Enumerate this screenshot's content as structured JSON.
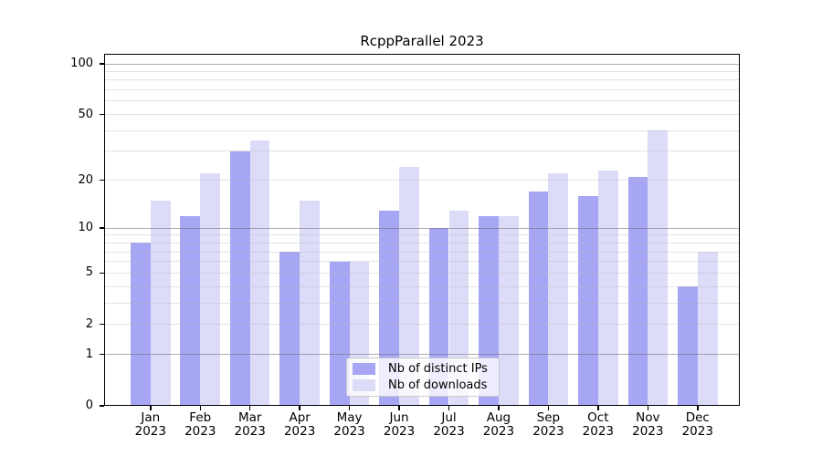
{
  "chart_data": {
    "type": "bar",
    "title": "RcppParallel 2023",
    "categories": [
      "Jan",
      "Feb",
      "Mar",
      "Apr",
      "May",
      "Jun",
      "Jul",
      "Aug",
      "Sep",
      "Oct",
      "Nov",
      "Dec"
    ],
    "category_year": "2023",
    "series": [
      {
        "name": "Nb of distinct IPs",
        "color": "#a6a6f4",
        "values": [
          8,
          12,
          30,
          7,
          6,
          13,
          10,
          12,
          17,
          16,
          21,
          4
        ]
      },
      {
        "name": "Nb of downloads",
        "color": "#dcdcf9",
        "values": [
          15,
          22,
          35,
          15,
          6,
          24,
          13,
          12,
          22,
          23,
          40,
          7
        ]
      }
    ],
    "y_axis": {
      "scale": "log1p",
      "ylim": [
        0,
        100
      ],
      "tick_labels": [
        0,
        1,
        2,
        5,
        10,
        20,
        50,
        100
      ],
      "major_gridlines": [
        1,
        10,
        100
      ],
      "minor_gridlines": [
        2,
        3,
        4,
        5,
        6,
        7,
        8,
        9,
        20,
        30,
        40,
        50,
        60,
        70,
        80,
        90
      ]
    },
    "legend": {
      "position": "inside-bottom-center",
      "entries": [
        "Nb of distinct IPs",
        "Nb of downloads"
      ]
    },
    "grid": true,
    "background": "#ffffff"
  }
}
